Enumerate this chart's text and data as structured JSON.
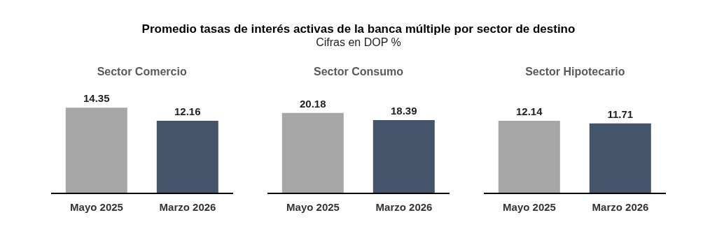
{
  "chart_data": [
    {
      "type": "other",
      "title": "Promedio tasas de interés activas de la banca múltiple por sector de destino",
      "subtitle": "Cifras en DOP %"
    },
    {
      "type": "bar",
      "title": "Sector Comercio",
      "categories": [
        "Mayo 2025",
        "Marzo 2026"
      ],
      "values": [
        14.35,
        12.16
      ],
      "colors": [
        "#a6a6a6",
        "#44546a"
      ],
      "data_labels": true
    },
    {
      "type": "bar",
      "title": "Sector Consumo",
      "categories": [
        "Mayo 2025",
        "Marzo 2026"
      ],
      "values": [
        20.18,
        18.39
      ],
      "colors": [
        "#a6a6a6",
        "#44546a"
      ],
      "data_labels": true
    },
    {
      "type": "bar",
      "title": "Sector Hipotecario",
      "categories": [
        "Mayo 2025",
        "Marzo 2026"
      ],
      "values": [
        12.14,
        11.71
      ],
      "colors": [
        "#a6a6a6",
        "#44546a"
      ],
      "data_labels": true
    }
  ]
}
